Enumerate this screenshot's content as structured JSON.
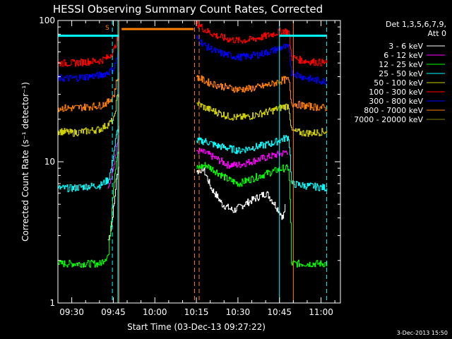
{
  "chart_data": {
    "type": "line",
    "title": "HESSI Observing Summary Count Rates, Corrected",
    "xlabel": "Start Time (03-Dec-13 09:27:22)",
    "ylabel": "Corrected Count Rate (s⁻¹ detector⁻¹)",
    "y_scale": "log",
    "ylim": [
      1,
      100
    ],
    "xlim": [
      "09:25",
      "11:07"
    ],
    "x_ticks": [
      "09:30",
      "09:45",
      "10:00",
      "10:15",
      "10:30",
      "10:45",
      "11:00"
    ],
    "y_ticks": [
      "1",
      "10",
      "100"
    ],
    "legend_title": [
      "Det 1,3,5,6,7,9,",
      "Att 0"
    ],
    "legend_position": "right",
    "timestamp": "3-Dec-2013 15:50",
    "annotation_marker": "S",
    "colors": {
      "background": "#000000",
      "axis": "#ffffff",
      "flag_cyan": "#00ffff",
      "flag_orange": "#ff8000"
    },
    "flags": [
      {
        "color": "#00ffff",
        "style": "solid",
        "times": [
          "09:46:40",
          "10:45:00"
        ]
      },
      {
        "color": "#00ffff",
        "style": "dashed",
        "times": [
          "09:44:40",
          "11:02:00"
        ]
      },
      {
        "color": "#ff8000",
        "style": "solid",
        "times": [
          "09:47:00",
          "10:50:00"
        ]
      },
      {
        "color": "#ff8000",
        "style": "dashed",
        "times": [
          "10:14:20",
          "10:16:00"
        ]
      }
    ],
    "flag_bars": [
      {
        "color": "#00ffff",
        "y": 78,
        "start": "09:25",
        "end": "09:47"
      },
      {
        "color": "#00ffff",
        "y": 78,
        "start": "10:45",
        "end": "11:02"
      },
      {
        "color": "#ff8000",
        "y": 87,
        "start": "09:48",
        "end": "10:14"
      }
    ],
    "gap": [
      "09:47",
      "10:15"
    ],
    "series": [
      {
        "name": "3 - 6 keV",
        "color": "#ffffff",
        "points": [
          [
            "09:43",
            2.8
          ],
          [
            "09:44",
            3.5
          ],
          [
            "09:45",
            5.0
          ],
          [
            "09:46",
            8.0
          ],
          [
            "09:47",
            10.0
          ],
          [
            "10:15",
            8.5
          ],
          [
            "10:17",
            9.0
          ],
          [
            "10:20",
            6.5
          ],
          [
            "10:24",
            5.0
          ],
          [
            "10:28",
            4.5
          ],
          [
            "10:32",
            5.0
          ],
          [
            "10:36",
            5.5
          ],
          [
            "10:40",
            6.0
          ],
          [
            "10:43",
            5.0
          ],
          [
            "10:46",
            4.0
          ],
          [
            "10:47",
            5.0
          ]
        ]
      },
      {
        "name": "6 - 12 keV",
        "color": "#ff00ff",
        "points": [
          [
            "09:43",
            6.5
          ],
          [
            "09:44",
            8.0
          ],
          [
            "09:45",
            10.0
          ],
          [
            "09:46",
            13.5
          ],
          [
            "09:47",
            15.0
          ],
          [
            "10:15",
            12.0
          ],
          [
            "10:18",
            11.5
          ],
          [
            "10:22",
            10.5
          ],
          [
            "10:26",
            9.5
          ],
          [
            "10:30",
            9.5
          ],
          [
            "10:34",
            10.0
          ],
          [
            "10:38",
            10.5
          ],
          [
            "10:42",
            11.0
          ],
          [
            "10:46",
            11.5
          ],
          [
            "10:48",
            12.0
          ]
        ]
      },
      {
        "name": "12 - 25 keV",
        "color": "#00ff00",
        "points": [
          [
            "09:25",
            1.9
          ],
          [
            "09:30",
            1.9
          ],
          [
            "09:35",
            1.9
          ],
          [
            "09:40",
            1.9
          ],
          [
            "09:43",
            2.2
          ],
          [
            "09:44",
            4.0
          ],
          [
            "09:45",
            7.5
          ],
          [
            "09:46",
            11.0
          ],
          [
            "09:47",
            12.0
          ],
          [
            "10:15",
            9.0
          ],
          [
            "10:18",
            9.5
          ],
          [
            "10:22",
            8.5
          ],
          [
            "10:26",
            7.5
          ],
          [
            "10:30",
            7.0
          ],
          [
            "10:34",
            7.5
          ],
          [
            "10:38",
            8.0
          ],
          [
            "10:42",
            8.5
          ],
          [
            "10:46",
            9.0
          ],
          [
            "10:48",
            9.0
          ],
          [
            "10:49",
            1.9
          ],
          [
            "10:53",
            1.9
          ],
          [
            "10:57",
            1.9
          ],
          [
            "11:02",
            1.9
          ]
        ]
      },
      {
        "name": "25 - 50 keV",
        "color": "#00ffff",
        "points": [
          [
            "09:25",
            6.5
          ],
          [
            "09:30",
            6.5
          ],
          [
            "09:35",
            6.7
          ],
          [
            "09:40",
            6.8
          ],
          [
            "09:43",
            7.5
          ],
          [
            "09:44",
            9.0
          ],
          [
            "09:45",
            12.0
          ],
          [
            "09:46",
            16.0
          ],
          [
            "09:47",
            18.0
          ],
          [
            "10:15",
            14.0
          ],
          [
            "10:18",
            14.0
          ],
          [
            "10:22",
            13.0
          ],
          [
            "10:26",
            12.5
          ],
          [
            "10:30",
            12.0
          ],
          [
            "10:34",
            12.5
          ],
          [
            "10:38",
            13.0
          ],
          [
            "10:42",
            13.5
          ],
          [
            "10:46",
            14.5
          ],
          [
            "10:48",
            15.0
          ],
          [
            "10:49",
            7.0
          ],
          [
            "10:53",
            6.8
          ],
          [
            "10:57",
            6.7
          ],
          [
            "11:02",
            6.5
          ]
        ]
      },
      {
        "name": "50 - 100 keV",
        "color": "#d0d000",
        "points": [
          [
            "09:25",
            16.5
          ],
          [
            "09:30",
            16.0
          ],
          [
            "09:35",
            16.5
          ],
          [
            "09:40",
            17.0
          ],
          [
            "09:43",
            18.5
          ],
          [
            "09:45",
            20.0
          ],
          [
            "09:46",
            28.0
          ],
          [
            "09:47",
            32.0
          ],
          [
            "10:15",
            26.0
          ],
          [
            "10:18",
            24.0
          ],
          [
            "10:22",
            22.5
          ],
          [
            "10:26",
            21.0
          ],
          [
            "10:30",
            20.5
          ],
          [
            "10:34",
            21.0
          ],
          [
            "10:38",
            22.0
          ],
          [
            "10:42",
            23.0
          ],
          [
            "10:46",
            24.5
          ],
          [
            "10:48",
            25.0
          ],
          [
            "10:49",
            16.5
          ],
          [
            "10:53",
            16.0
          ],
          [
            "10:57",
            16.0
          ],
          [
            "11:02",
            16.5
          ]
        ]
      },
      {
        "name": "100 - 300 keV",
        "color": "#ff0000",
        "points": [
          [
            "09:25",
            50.0
          ],
          [
            "09:30",
            50.0
          ],
          [
            "09:35",
            51.0
          ],
          [
            "09:40",
            52.0
          ],
          [
            "09:43",
            55.0
          ],
          [
            "09:45",
            62.0
          ],
          [
            "09:46",
            72.0
          ],
          [
            "09:47",
            78.0
          ],
          [
            "10:15",
            95.0
          ],
          [
            "10:18",
            85.0
          ],
          [
            "10:22",
            78.0
          ],
          [
            "10:26",
            74.0
          ],
          [
            "10:30",
            72.0
          ],
          [
            "10:34",
            73.0
          ],
          [
            "10:38",
            76.0
          ],
          [
            "10:42",
            80.0
          ],
          [
            "10:46",
            85.0
          ],
          [
            "10:48",
            83.0
          ],
          [
            "10:49",
            55.0
          ],
          [
            "10:53",
            52.0
          ],
          [
            "10:57",
            51.0
          ],
          [
            "11:02",
            50.0
          ]
        ]
      },
      {
        "name": "300 - 800 keV",
        "color": "#0000ff",
        "points": [
          [
            "09:25",
            39.0
          ],
          [
            "09:30",
            39.0
          ],
          [
            "09:35",
            40.0
          ],
          [
            "09:40",
            41.0
          ],
          [
            "09:43",
            43.0
          ],
          [
            "09:45",
            46.0
          ],
          [
            "09:46",
            55.0
          ],
          [
            "09:47",
            60.0
          ],
          [
            "10:15",
            75.0
          ],
          [
            "10:18",
            66.0
          ],
          [
            "10:22",
            60.0
          ],
          [
            "10:26",
            57.0
          ],
          [
            "10:30",
            55.0
          ],
          [
            "10:34",
            56.0
          ],
          [
            "10:38",
            58.0
          ],
          [
            "10:42",
            61.0
          ],
          [
            "10:46",
            65.0
          ],
          [
            "10:48",
            64.0
          ],
          [
            "10:49",
            43.0
          ],
          [
            "10:53",
            40.0
          ],
          [
            "10:57",
            38.0
          ],
          [
            "11:02",
            37.0
          ]
        ]
      },
      {
        "name": "800 - 7000 keV",
        "color": "#ff8000",
        "points": [
          [
            "09:25",
            24.0
          ],
          [
            "09:30",
            24.0
          ],
          [
            "09:35",
            24.5
          ],
          [
            "09:40",
            25.0
          ],
          [
            "09:43",
            26.5
          ],
          [
            "09:45",
            30.0
          ],
          [
            "09:46",
            38.0
          ],
          [
            "09:47",
            42.0
          ],
          [
            "10:15",
            40.0
          ],
          [
            "10:18",
            37.0
          ],
          [
            "10:22",
            35.0
          ],
          [
            "10:26",
            33.5
          ],
          [
            "10:30",
            32.5
          ],
          [
            "10:34",
            33.0
          ],
          [
            "10:38",
            34.0
          ],
          [
            "10:42",
            35.5
          ],
          [
            "10:46",
            38.0
          ],
          [
            "10:48",
            38.0
          ],
          [
            "10:49",
            26.0
          ],
          [
            "10:53",
            25.0
          ],
          [
            "10:57",
            24.5
          ],
          [
            "11:02",
            24.0
          ]
        ]
      },
      {
        "name": "7000 - 20000 keV",
        "color": "#808000",
        "points": []
      }
    ]
  }
}
